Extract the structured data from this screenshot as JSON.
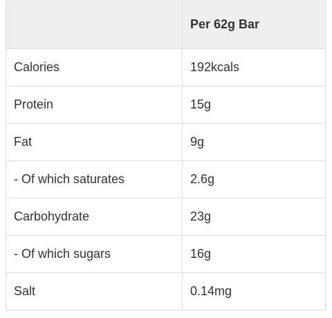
{
  "table": {
    "header": {
      "nutrient": "",
      "amount": "Per 62g Bar"
    },
    "rows": [
      {
        "nutrient": "Calories",
        "amount": "192kcals"
      },
      {
        "nutrient": "Protein",
        "amount": "15g"
      },
      {
        "nutrient": "Fat",
        "amount": "9g"
      },
      {
        "nutrient": "- Of which saturates",
        "amount": "2.6g"
      },
      {
        "nutrient": "Carbohydrate",
        "amount": "23g"
      },
      {
        "nutrient": "- Of which sugars",
        "amount": "16g"
      },
      {
        "nutrient": "Salt",
        "amount": "0.14mg"
      }
    ]
  }
}
